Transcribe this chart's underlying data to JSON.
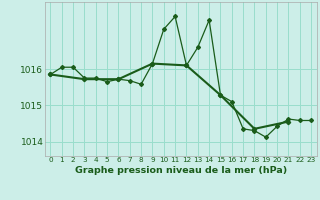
{
  "line1_x": [
    0,
    1,
    2,
    3,
    4,
    5,
    6,
    7,
    8,
    9,
    10,
    11,
    12,
    13,
    14,
    15,
    16,
    17,
    18,
    19,
    20,
    21,
    22,
    23
  ],
  "line1_y": [
    1015.85,
    1016.05,
    1016.05,
    1015.75,
    1015.75,
    1015.65,
    1015.72,
    1015.68,
    1015.58,
    1016.15,
    1017.1,
    1017.45,
    1016.1,
    1016.6,
    1017.35,
    1015.28,
    1015.1,
    1014.35,
    1014.3,
    1014.12,
    1014.42,
    1014.62,
    1014.58,
    1014.58
  ],
  "line2_x": [
    0,
    3,
    6,
    9,
    12,
    15,
    18,
    21
  ],
  "line2_y": [
    1015.85,
    1015.72,
    1015.72,
    1016.15,
    1016.1,
    1015.28,
    1014.35,
    1014.55
  ],
  "background_color": "#cceee8",
  "grid_color": "#99ddcc",
  "line_color": "#1a5c1a",
  "title": "Graphe pression niveau de la mer (hPa)",
  "yticks": [
    1014,
    1015,
    1016
  ],
  "ylim": [
    1013.6,
    1017.85
  ],
  "xlim": [
    -0.5,
    23.5
  ]
}
